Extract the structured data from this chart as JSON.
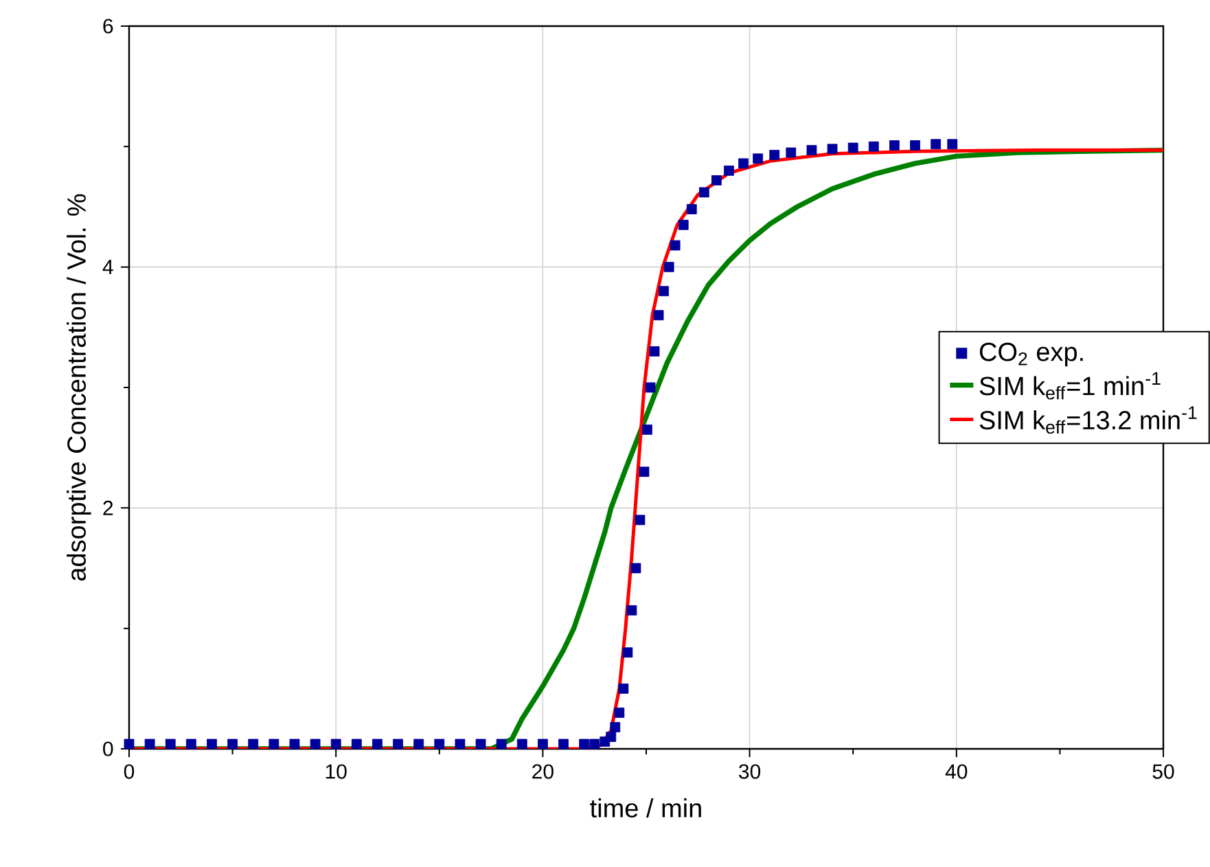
{
  "chart_data": {
    "type": "line",
    "xlabel": "time / min",
    "ylabel": "adsorptive Concentration / Vol. %",
    "xlim": [
      0,
      50
    ],
    "ylim": [
      0,
      6
    ],
    "xticks": [
      0,
      10,
      20,
      30,
      40,
      50
    ],
    "yticks": [
      0,
      2,
      4,
      6
    ],
    "grid": true,
    "legend": "right",
    "series": [
      {
        "name": "CO$_{2}$ exp.",
        "type": "scatter",
        "marker": "square",
        "color": "#00009c",
        "x": [
          0,
          1,
          2,
          3,
          4,
          5,
          6,
          7,
          8,
          9,
          10,
          11,
          12,
          13,
          14,
          15,
          16,
          17,
          18,
          19,
          20,
          21,
          22,
          22.5,
          23,
          23.3,
          23.5,
          23.7,
          23.9,
          24.1,
          24.3,
          24.5,
          24.7,
          24.9,
          25.05,
          25.2,
          25.4,
          25.6,
          25.85,
          26.1,
          26.4,
          26.8,
          27.2,
          27.8,
          28.4,
          29,
          29.7,
          30.4,
          31.2,
          32,
          33,
          34,
          35,
          36,
          37,
          38,
          39,
          39.8
        ],
        "values": [
          0.04,
          0.04,
          0.04,
          0.04,
          0.04,
          0.04,
          0.04,
          0.04,
          0.04,
          0.04,
          0.04,
          0.04,
          0.04,
          0.04,
          0.04,
          0.04,
          0.04,
          0.04,
          0.04,
          0.04,
          0.04,
          0.04,
          0.04,
          0.04,
          0.06,
          0.1,
          0.18,
          0.3,
          0.5,
          0.8,
          1.15,
          1.5,
          1.9,
          2.3,
          2.65,
          3.0,
          3.3,
          3.6,
          3.8,
          4.0,
          4.18,
          4.35,
          4.48,
          4.62,
          4.72,
          4.8,
          4.86,
          4.9,
          4.93,
          4.95,
          4.97,
          4.98,
          4.99,
          5.0,
          5.01,
          5.01,
          5.02,
          5.02
        ]
      },
      {
        "name": "SIM  k$_{eff}$=1 min$^{-1}$",
        "color": "#008000",
        "x": [
          0,
          17.5,
          18.5,
          19,
          20,
          21,
          21.5,
          22,
          23,
          23.3,
          24,
          25,
          26,
          27,
          28,
          29,
          30,
          31,
          32.3,
          34,
          36,
          38,
          40,
          43,
          46,
          50
        ],
        "values": [
          0,
          0,
          0.08,
          0.25,
          0.52,
          0.82,
          1.0,
          1.25,
          1.8,
          2.0,
          2.32,
          2.76,
          3.2,
          3.55,
          3.85,
          4.05,
          4.22,
          4.36,
          4.5,
          4.65,
          4.77,
          4.86,
          4.92,
          4.95,
          4.96,
          4.97
        ]
      },
      {
        "name": "SIM k$_{eff}$=13.2 min$^{-1}$",
        "color": "#ff0000",
        "x": [
          0,
          22,
          22.8,
          23.3,
          23.7,
          24.0,
          24.3,
          24.6,
          24.9,
          25.3,
          25.8,
          26.5,
          27.5,
          29,
          31,
          34,
          38,
          44,
          50
        ],
        "values": [
          0,
          0,
          0.03,
          0.15,
          0.5,
          1.0,
          1.6,
          2.3,
          3.0,
          3.6,
          4.0,
          4.35,
          4.6,
          4.78,
          4.88,
          4.94,
          4.96,
          4.97,
          4.97
        ]
      }
    ]
  }
}
